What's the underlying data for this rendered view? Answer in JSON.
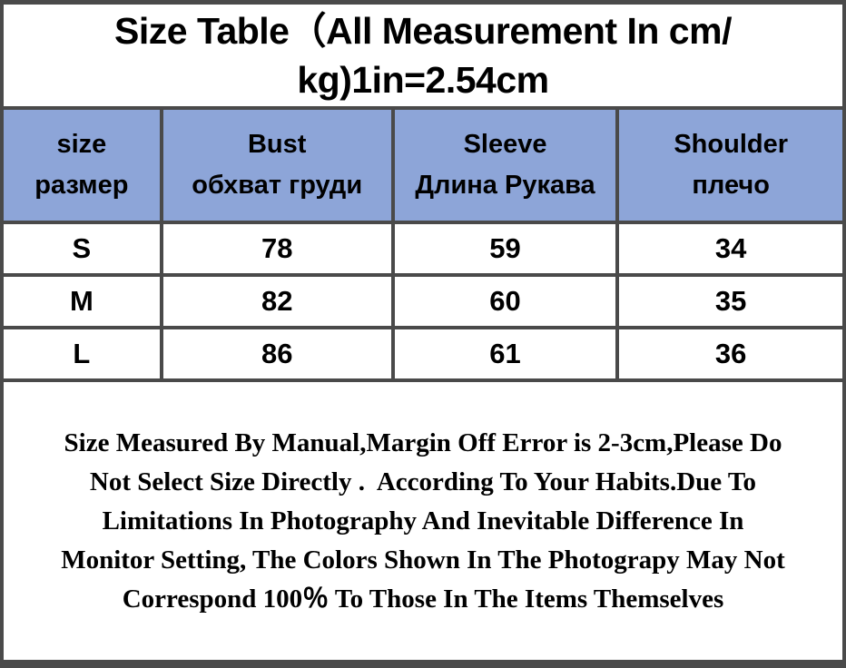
{
  "title": {
    "line1": "Size Table（All Measurement In cm/",
    "line2": "kg)1in=2.54cm"
  },
  "table": {
    "columns": [
      {
        "en": "size",
        "ru": "размер"
      },
      {
        "en": "Bust",
        "ru": "обхват груди"
      },
      {
        "en": "Sleeve",
        "ru": "Длина Рукава"
      },
      {
        "en": "Shoulder",
        "ru": "плечо"
      }
    ],
    "rows": [
      {
        "size": "S",
        "bust": "78",
        "sleeve": "59",
        "shoulder": "34"
      },
      {
        "size": "M",
        "bust": "82",
        "sleeve": "60",
        "shoulder": "35"
      },
      {
        "size": "L",
        "bust": "86",
        "sleeve": "61",
        "shoulder": "36"
      }
    ]
  },
  "note": {
    "lines": [
      "Size Measured By Manual,Margin Off Error is 2-3cm,Please Do",
      "Not Select Size Directly .  According To Your Habits.Due To",
      "Limitations In Photography And Inevitable Difference In",
      "Monitor Setting, The Colors Shown In The Photograpy May Not",
      "Correspond 100％ To Those In The Items Themselves"
    ]
  },
  "colors": {
    "header_bg": "#8da5d8",
    "border": "#4a4a4a",
    "text": "#000000",
    "background": "#ffffff"
  },
  "chart_data": {
    "type": "table",
    "title": "Size Table（All Measurement In cm/kg)1in=2.54cm",
    "units": "cm",
    "columns": [
      "size размер",
      "Bust обхват груди",
      "Sleeve Длина Рукава",
      "Shoulder плечо"
    ],
    "rows": [
      [
        "S",
        78,
        59,
        34
      ],
      [
        "M",
        82,
        60,
        35
      ],
      [
        "L",
        86,
        61,
        36
      ]
    ],
    "note": "Size Measured By Manual,Margin Off Error is 2-3cm,Please Do Not Select Size Directly .  According To Your Habits.Due To Limitations In Photography And Inevitable Difference In Monitor Setting, The Colors Shown In The Photograpy May Not Correspond 100％ To Those In The Items Themselves"
  }
}
